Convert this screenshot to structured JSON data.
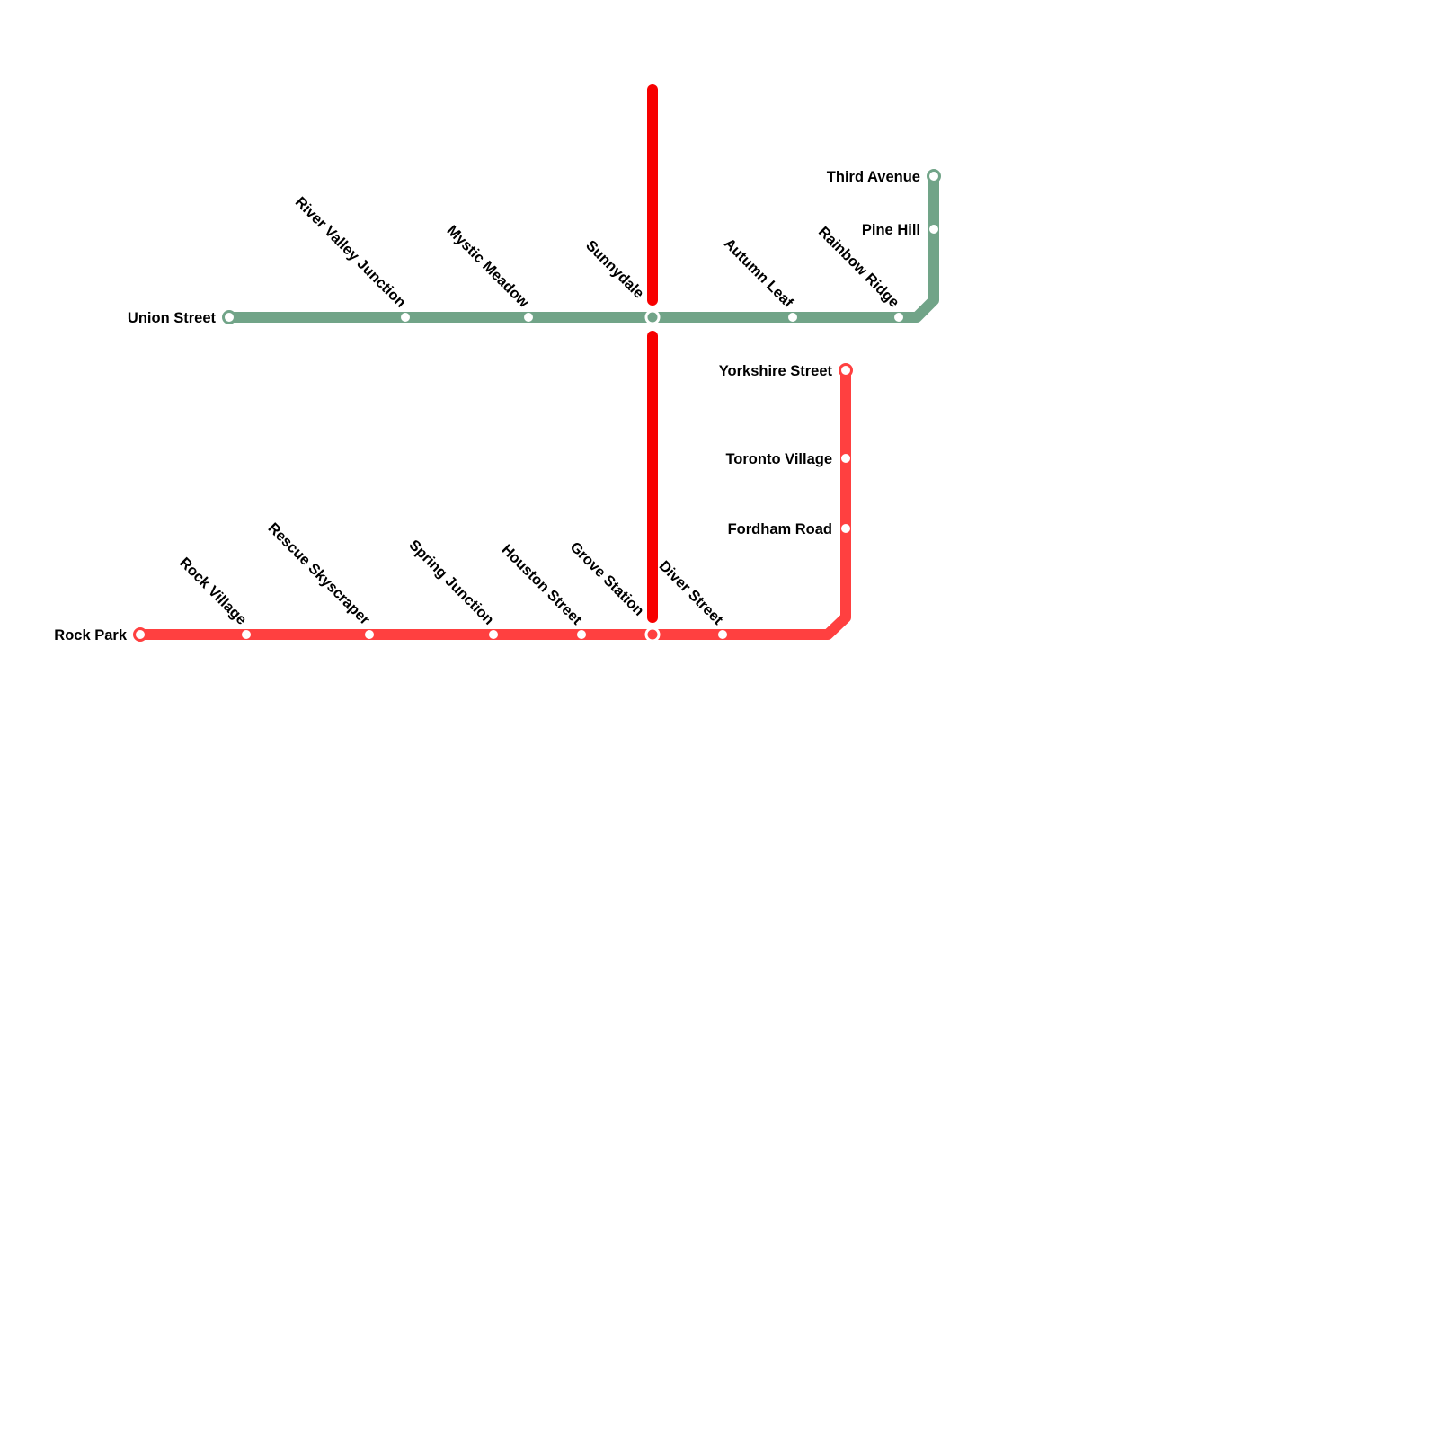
{
  "colors": {
    "green_line": "#71A488",
    "red_line": "#FF4040",
    "dark_red_line": "#F70000",
    "station_fill": "#FFFFFF"
  },
  "lines": [
    {
      "id": "green",
      "stations": [
        "Union Street",
        "River Valley Junction",
        "Mystic Meadow",
        "Sunnydale",
        "Autumn Leaf",
        "Rainbow Ridge",
        "Pine Hill",
        "Third Avenue"
      ]
    },
    {
      "id": "red",
      "stations": [
        "Rock Park",
        "Rock Village",
        "Rescue Skyscraper",
        "Spring Junction",
        "Houston Street",
        "Grove Station",
        "Diver Street",
        "Fordham Road",
        "Toronto Village",
        "Yorkshire Street"
      ]
    },
    {
      "id": "dark-red",
      "stations": []
    }
  ]
}
